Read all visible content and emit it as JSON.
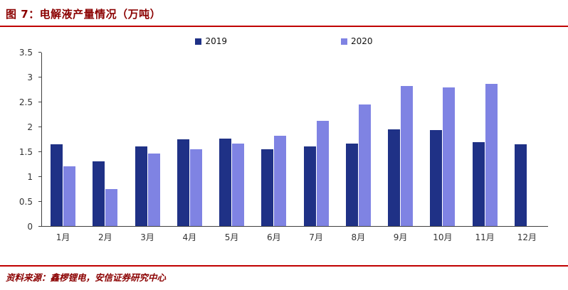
{
  "header": {
    "title": "图 7：电解液产量情况（万吨）"
  },
  "footer": {
    "source": "资料来源：鑫椤锂电，安信证券研究中心"
  },
  "colors": {
    "title_red": "#8B0000",
    "rule_red": "#C00000",
    "series_2019": "#1F3186",
    "series_2020": "#7F83E3"
  },
  "chart_data": {
    "type": "bar",
    "title": "电解液产量情况（万吨）",
    "categories": [
      "1月",
      "2月",
      "3月",
      "4月",
      "5月",
      "6月",
      "7月",
      "8月",
      "9月",
      "10月",
      "11月",
      "12月"
    ],
    "series": [
      {
        "name": "2019",
        "color": "#1F3186",
        "values": [
          1.65,
          1.3,
          1.6,
          1.75,
          1.77,
          1.55,
          1.6,
          1.67,
          1.95,
          1.93,
          1.7,
          1.65
        ]
      },
      {
        "name": "2020",
        "color": "#7F83E3",
        "values": [
          1.2,
          0.75,
          1.47,
          1.55,
          1.67,
          1.82,
          2.12,
          2.45,
          2.83,
          2.8,
          2.87,
          null
        ]
      }
    ],
    "xlabel": "",
    "ylabel": "",
    "ylim": [
      0,
      3.5
    ],
    "yticks": [
      0,
      0.5,
      1,
      1.5,
      2,
      2.5,
      3,
      3.5
    ],
    "grid": false,
    "legend_position": "top"
  }
}
